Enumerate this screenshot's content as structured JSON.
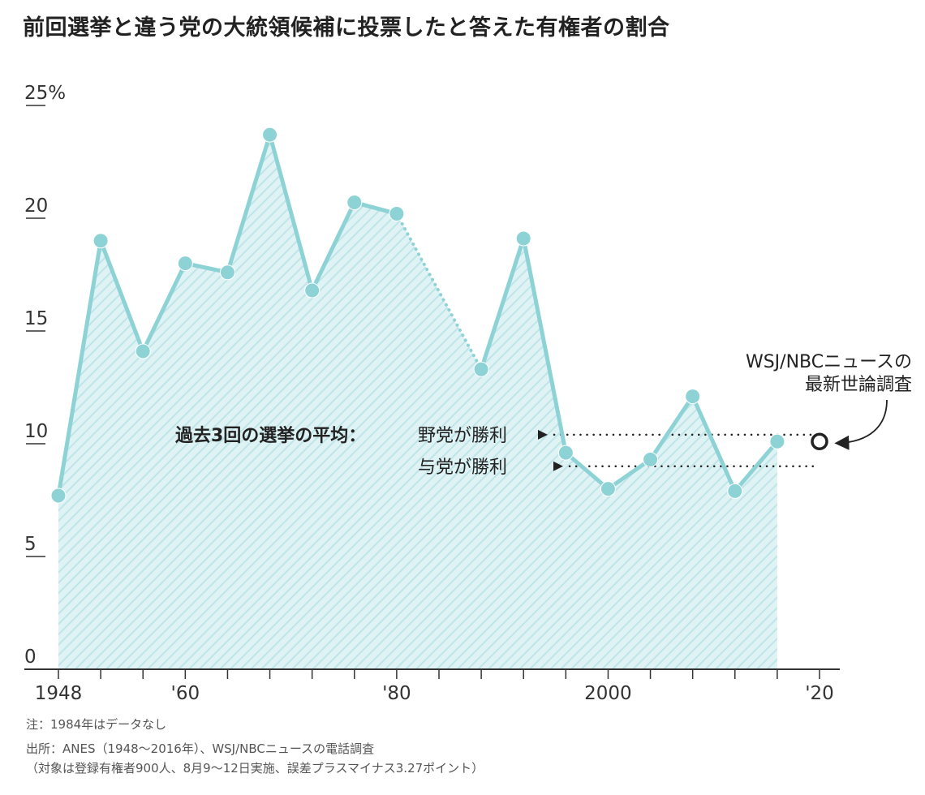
{
  "chart_data": {
    "type": "area",
    "title": "前回選挙と違う党の大統領候補に投票したと答えた有権者の割合",
    "x": [
      1948,
      1952,
      1956,
      1960,
      1964,
      1968,
      1972,
      1976,
      1980,
      1988,
      1992,
      1996,
      2000,
      2004,
      2008,
      2012,
      2016
    ],
    "values": [
      7.7,
      19.0,
      14.1,
      18.0,
      17.6,
      23.7,
      16.8,
      20.7,
      20.2,
      13.3,
      19.1,
      9.6,
      8.0,
      9.3,
      12.1,
      7.9,
      10.1
    ],
    "dotted_segment": [
      1980,
      1988
    ],
    "y_ticks": [
      0,
      5,
      10,
      15,
      20,
      25
    ],
    "y_tick_labels": [
      "0",
      "5",
      "10",
      "15",
      "20",
      "25%"
    ],
    "ylim": [
      0,
      25
    ],
    "x_major_ticks": [
      1948,
      1960,
      1980,
      2000,
      2020
    ],
    "x_tick_labels": [
      "1948",
      "'60",
      "'80",
      "2000",
      "'20"
    ],
    "x_minor_ticks": [
      1952,
      1956,
      1964,
      1968,
      1972,
      1976,
      1984,
      1988,
      1992,
      1996,
      2004,
      2008,
      2012,
      2016
    ],
    "xlim": [
      1948,
      2020
    ],
    "grid": false,
    "colors": {
      "line": "#8dd3d6",
      "fill": "#d9f0f2",
      "hatch": "#bfe4e8",
      "annotation": "#222222"
    },
    "annotations": {
      "average_label": "過去3回の選挙の平均：",
      "opposition_label": "野党が勝利",
      "opposition_value": 10.4,
      "ruling_label": "与党が勝利",
      "ruling_value": 9.0,
      "survey_label_line1": "WSJ/NBCニュースの",
      "survey_label_line2": "最新世論調査",
      "survey_point": {
        "x": 2020,
        "y": 10.1
      }
    }
  },
  "notes": {
    "note1": "注：1984年はデータなし",
    "note2": "出所：ANES（1948～2016年）、WSJ/NBCニュースの電話調査",
    "note3": "（対象は登録有権者900人、8月9～12日実施、誤差プラスマイナス3.27ポイント）"
  }
}
